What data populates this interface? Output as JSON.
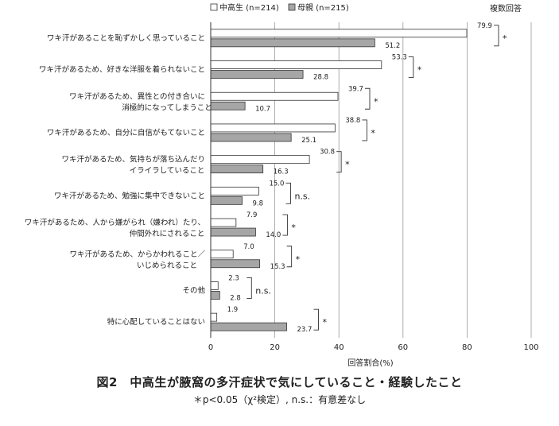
{
  "chart_data": {
    "type": "bar",
    "orientation": "horizontal",
    "categories": [
      [
        "ワキ汗があることを恥ずかしく思っていること"
      ],
      [
        "ワキ汗があるため、好きな洋服を着られないこと"
      ],
      [
        "ワキ汗があるため、異性との付き合いに",
        "消極的になってしまうこと"
      ],
      [
        "ワキ汗があるため、自分に自信がもてないこと"
      ],
      [
        "ワキ汗があるため、気持ちが落ち込んだり",
        "イライラしていること"
      ],
      [
        "ワキ汗があるため、勉強に集中できないこと"
      ],
      [
        "ワキ汗があるため、人から嫌がられ（嫌われ）たり、",
        "仲間外れにされること"
      ],
      [
        "ワキ汗があるため、からかわれること／",
        "いじめられること"
      ],
      [
        "その他"
      ],
      [
        "特に心配していることはない"
      ]
    ],
    "series": [
      {
        "name": "中高生 (n=214)",
        "color": "#ffffff",
        "values": [
          79.9,
          53.3,
          39.7,
          38.8,
          30.8,
          15.0,
          7.9,
          7.0,
          2.3,
          1.9
        ]
      },
      {
        "name": "母親 (n=215)",
        "color": "#a6a6a6",
        "values": [
          51.2,
          28.8,
          10.7,
          25.1,
          16.3,
          9.8,
          14.0,
          15.3,
          2.8,
          23.7
        ]
      }
    ],
    "significance": [
      "*",
      "*",
      "*",
      "*",
      "*",
      "n.s.",
      "*",
      "*",
      "n.s.",
      "*"
    ],
    "xlim": [
      0,
      100
    ],
    "xticks": [
      0,
      20,
      40,
      60,
      80,
      100
    ],
    "xlabel": "回答割合(%)",
    "grid": true,
    "legend_position": "top",
    "note_top_right": "複数回答",
    "title": "図2　中高生が腋窩の多汗症状で気にしていること・経験したこと",
    "footnote": "＊p<0.05（χ²検定）, n.s.：有意差なし"
  }
}
